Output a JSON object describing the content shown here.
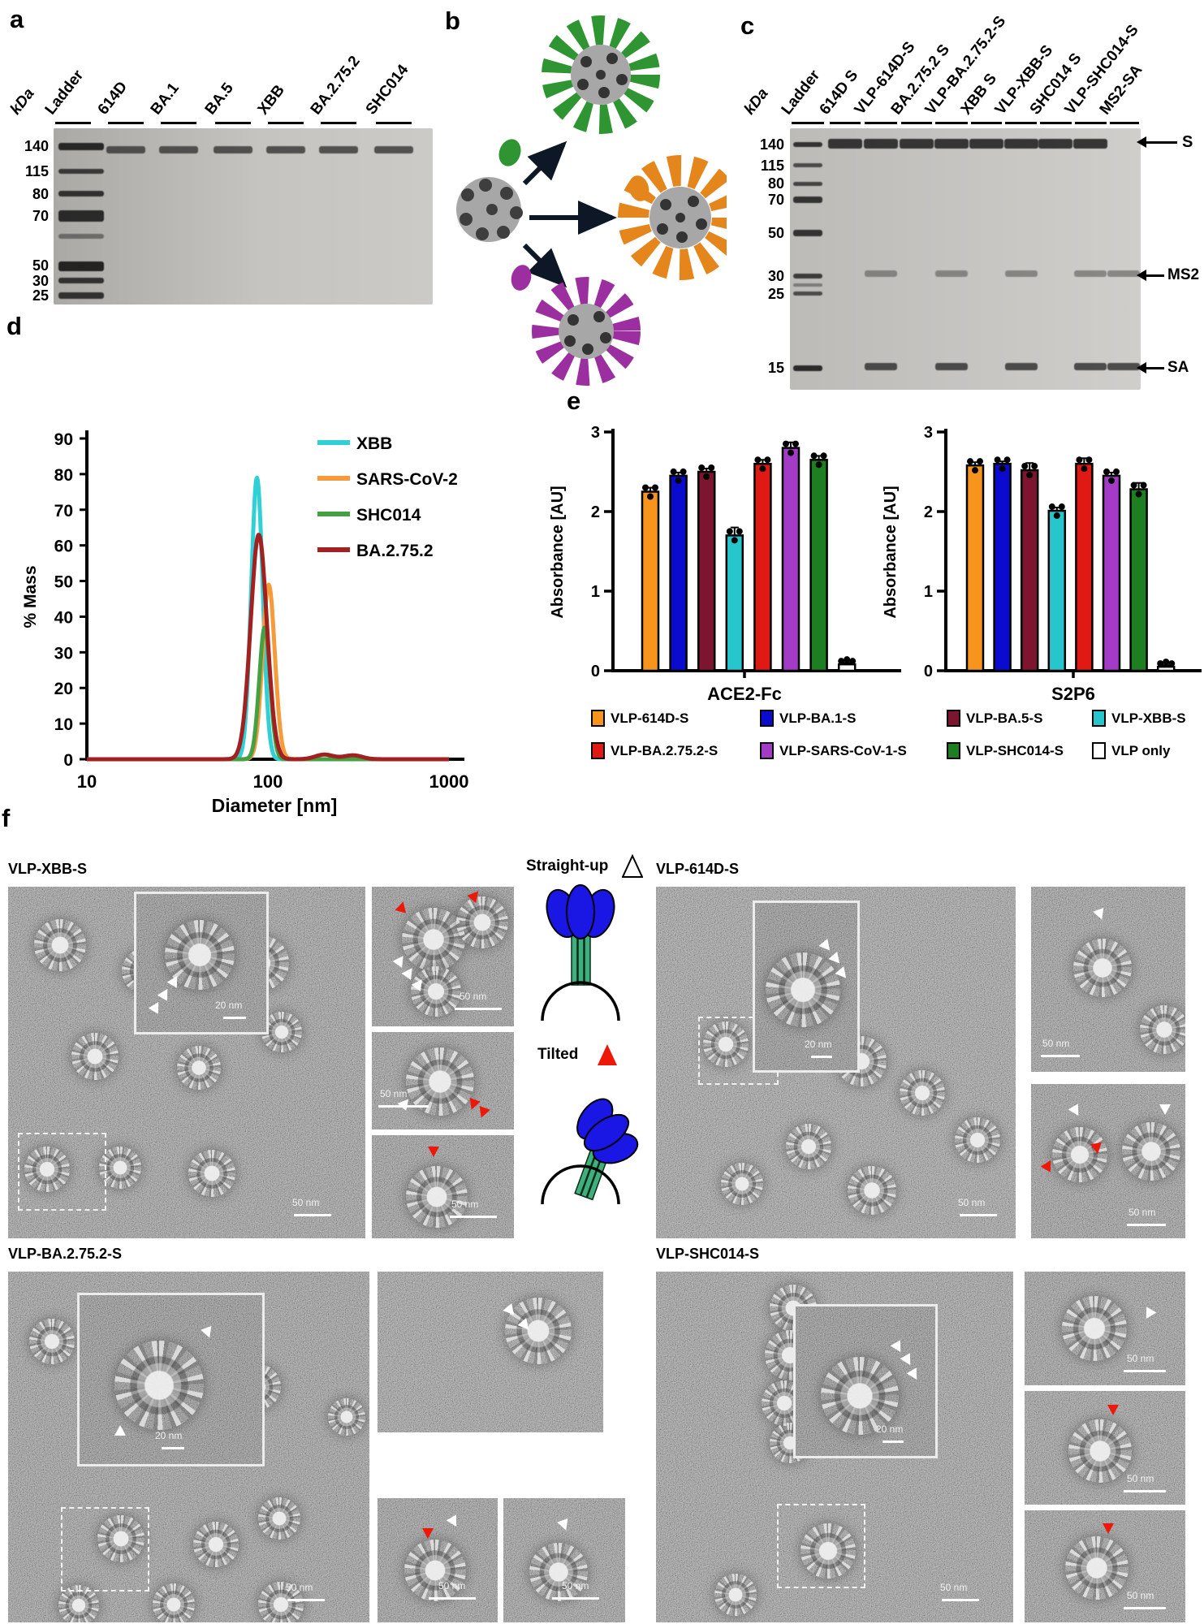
{
  "figure": {
    "panel_labels": {
      "a": "a",
      "b": "b",
      "c": "c",
      "d": "d",
      "e": "e",
      "f": "f"
    }
  },
  "panels": {
    "a": {
      "kda": "kDa",
      "lanes": [
        "Ladder",
        "614D",
        "BA.1",
        "BA.5",
        "XBB",
        "BA.2.75.2",
        "SHC014"
      ],
      "markers": [
        "140",
        "115",
        "80",
        "70",
        "50",
        "30",
        "25"
      ]
    },
    "c": {
      "kda": "kDa",
      "lanes": [
        "Ladder",
        "614D S",
        "VLP-614D-S",
        "BA.2.75.2 S",
        "VLP-BA.2.75.2-S",
        "XBB S",
        "VLP-XBB-S",
        "SHC014 S",
        "VLP-SHC014-S",
        "MS2-SA"
      ],
      "markers": [
        "140",
        "115",
        "80",
        "70",
        "50",
        "30",
        "25",
        "15"
      ],
      "band_labels": [
        "S",
        "MS2",
        "SA"
      ]
    },
    "f": {
      "titles": [
        "VLP-XBB-S",
        "VLP-614D-S",
        "VLP-BA.2.75.2-S",
        "VLP-SHC014-S"
      ],
      "straight_up": "Straight-up",
      "tilted": "Tilted",
      "scale_50": "50 nm",
      "scale_20": "20 nm"
    }
  },
  "chart_data": [
    {
      "type": "line",
      "panel": "d",
      "xlabel": "Diameter [nm]",
      "ylabel": "% Mass",
      "xscale": "log",
      "xlim": [
        10,
        1000
      ],
      "ylim": [
        0,
        90
      ],
      "xticks": [
        10,
        100,
        1000
      ],
      "yticks": [
        0,
        10,
        20,
        30,
        40,
        50,
        60,
        70,
        80,
        90
      ],
      "grid": false,
      "legend_position": "top-right",
      "series": [
        {
          "name": "XBB",
          "color": "#2FD0D6",
          "peak_nm": 87,
          "peak_pct": 79,
          "log_sd": 0.032
        },
        {
          "name": "SARS-CoV-2",
          "color": "#F59B3C",
          "peak_nm": 101,
          "peak_pct": 49,
          "log_sd": 0.034
        },
        {
          "name": "SHC014",
          "color": "#43A143",
          "peak_nm": 96,
          "peak_pct": 37,
          "log_sd": 0.03
        },
        {
          "name": "BA.2.75.2",
          "color": "#A32020",
          "peak_nm": 89,
          "peak_pct": 63,
          "log_sd": 0.045,
          "minor_peaks": [
            {
              "nm": 205,
              "pct": 1.3
            },
            {
              "nm": 295,
              "pct": 1.1
            }
          ]
        }
      ]
    },
    {
      "type": "bar",
      "panel": "e-left",
      "xlabel": "ACE2-Fc",
      "ylabel": "Absorbance [AU]",
      "ylim": [
        0,
        3
      ],
      "yticks": [
        0,
        1,
        2,
        3
      ],
      "categories": [
        "VLP-614D-S",
        "VLP-BA.1-S",
        "VLP-BA.5-S",
        "VLP-XBB-S",
        "VLP-BA.2.75.2-S",
        "VLP-SARS-CoV-1-S",
        "VLP-SHC014-S",
        "VLP only"
      ],
      "values": [
        2.25,
        2.45,
        2.5,
        1.7,
        2.6,
        2.8,
        2.65,
        0.08
      ],
      "errors": [
        0.05,
        0.04,
        0.04,
        0.1,
        0.05,
        0.07,
        0.05,
        0.02
      ],
      "colors": [
        "#F7941E",
        "#0B0BD0",
        "#7D1530",
        "#27C5CC",
        "#E01915",
        "#A43BC6",
        "#1E7E22",
        "#FFFFFF"
      ]
    },
    {
      "type": "bar",
      "panel": "e-right",
      "xlabel": "S2P6",
      "ylabel": "Absorbance [AU]",
      "ylim": [
        0,
        3
      ],
      "yticks": [
        0,
        1,
        2,
        3
      ],
      "categories": [
        "VLP-614D-S",
        "VLP-BA.1-S",
        "VLP-BA.5-S",
        "VLP-XBB-S",
        "VLP-BA.2.75.2-S",
        "VLP-SARS-CoV-1-S",
        "VLP-SHC014-S",
        "VLP only"
      ],
      "values": [
        2.58,
        2.6,
        2.52,
        2.01,
        2.6,
        2.45,
        2.28,
        0.05
      ],
      "errors": [
        0.04,
        0.03,
        0.09,
        0.04,
        0.07,
        0.04,
        0.08,
        0.02
      ],
      "colors": [
        "#F7941E",
        "#0B0BD0",
        "#7D1530",
        "#27C5CC",
        "#E01915",
        "#A43BC6",
        "#1E7E22",
        "#FFFFFF"
      ]
    }
  ],
  "e_legend": {
    "items": [
      {
        "label": "VLP-614D-S",
        "color": "#F7941E"
      },
      {
        "label": "VLP-BA.1-S",
        "color": "#0B0BD0"
      },
      {
        "label": "VLP-BA.5-S",
        "color": "#7D1530"
      },
      {
        "label": "VLP-XBB-S",
        "color": "#27C5CC"
      },
      {
        "label": "VLP-BA.2.75.2-S",
        "color": "#E01915"
      },
      {
        "label": "VLP-SARS-CoV-1-S",
        "color": "#A43BC6"
      },
      {
        "label": "VLP-SHC014-S",
        "color": "#1E7E22"
      },
      {
        "label": "VLP only",
        "color": "#FFFFFF"
      }
    ]
  }
}
